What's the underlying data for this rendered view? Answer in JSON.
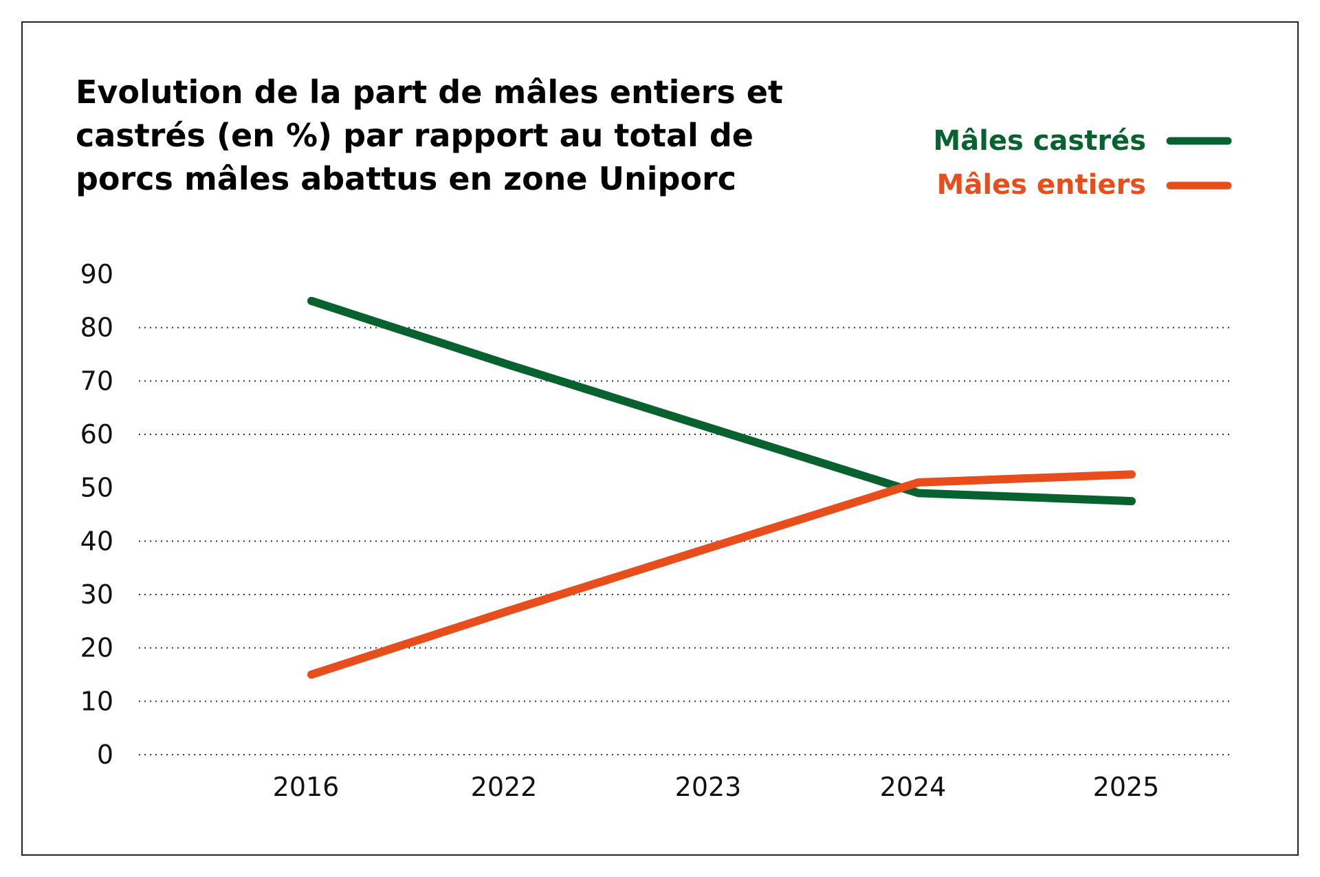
{
  "chart_data": {
    "type": "line",
    "title_lines": [
      "Evolution de la part de mâles entiers et",
      "castrés (en %) par rapport au total de",
      "porcs mâles abattus en zone Uniporc"
    ],
    "categories": [
      "2016",
      "2022",
      "2023",
      "2024",
      "2025"
    ],
    "series": [
      {
        "name": "Mâles castrés",
        "color": "#07622F",
        "values": [
          85,
          73,
          61,
          49,
          47.5
        ]
      },
      {
        "name": "Mâles entiers",
        "color": "#E84E1B",
        "values": [
          15,
          27,
          39,
          51,
          52.5
        ]
      }
    ],
    "yticks": [
      "0",
      "10",
      "20",
      "30",
      "40",
      "50",
      "60",
      "70",
      "80",
      "90"
    ],
    "ylim": [
      0,
      90
    ],
    "grid": "horizontal dotted",
    "legend": "top-right"
  }
}
